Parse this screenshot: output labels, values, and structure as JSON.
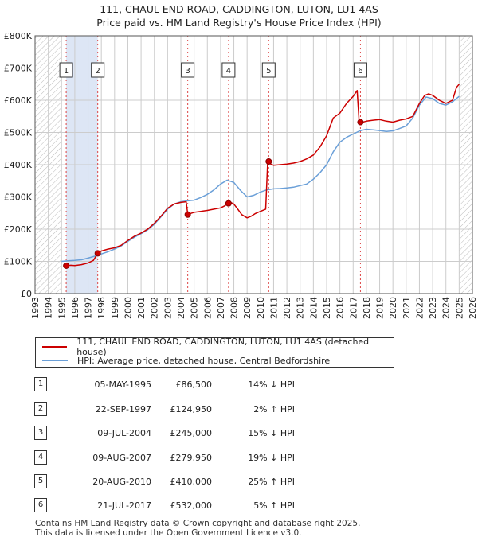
{
  "header": {
    "title_line1": "111, CHAUL END ROAD, CADDINGTON, LUTON, LU1 4AS",
    "title_line2": "Price paid vs. HM Land Registry's House Price Index (HPI)"
  },
  "chart_data": {
    "type": "line",
    "xlim": [
      1993,
      2026
    ],
    "ylim": [
      0,
      800000
    ],
    "y_ticks": [
      0,
      100000,
      200000,
      300000,
      400000,
      500000,
      600000,
      700000,
      800000
    ],
    "y_tick_labels": [
      "£0",
      "£100K",
      "£200K",
      "£300K",
      "£400K",
      "£500K",
      "£600K",
      "£700K",
      "£800K"
    ],
    "x_ticks": [
      1993,
      1994,
      1995,
      1996,
      1997,
      1998,
      1999,
      2000,
      2001,
      2002,
      2003,
      2004,
      2005,
      2006,
      2007,
      2008,
      2009,
      2010,
      2011,
      2012,
      2013,
      2014,
      2015,
      2016,
      2017,
      2018,
      2019,
      2020,
      2021,
      2022,
      2023,
      2024,
      2025,
      2026
    ],
    "x_tick_labels": [
      "1993",
      "1994",
      "1995",
      "1996",
      "1997",
      "1998",
      "1999",
      "2000",
      "2001",
      "2002",
      "2003",
      "2004",
      "2005",
      "2006",
      "2007",
      "2008",
      "2009",
      "2010",
      "2011",
      "2012",
      "2013",
      "2014",
      "2015",
      "2016",
      "2017",
      "2018",
      "2019",
      "2020",
      "2021",
      "2022",
      "2023",
      "2024",
      "2025",
      "2026"
    ],
    "grid": true,
    "hatched_ranges": [
      [
        1993,
        1995
      ],
      [
        2025,
        2026
      ]
    ],
    "highlight_band": [
      1995.35,
      1997.73
    ],
    "series": [
      {
        "name": "111, CHAUL END ROAD, CADDINGTON, LUTON, LU1 4AS (detached house)",
        "color": "#cc0000",
        "x": [
          1995.35,
          1995.7,
          1996.0,
          1996.5,
          1997.0,
          1997.4,
          1997.73,
          1998.0,
          1998.5,
          1999.0,
          1999.5,
          2000.0,
          2000.5,
          2001.0,
          2001.5,
          2002.0,
          2002.5,
          2003.0,
          2003.5,
          2004.0,
          2004.4,
          2004.52,
          2004.7,
          2005.0,
          2005.5,
          2006.0,
          2006.5,
          2007.0,
          2007.3,
          2007.6,
          2007.8,
          2008.0,
          2008.3,
          2008.6,
          2009.0,
          2009.3,
          2009.6,
          2010.0,
          2010.4,
          2010.55,
          2010.63,
          2011.0,
          2011.5,
          2012.0,
          2012.5,
          2013.0,
          2013.5,
          2014.0,
          2014.5,
          2015.0,
          2015.5,
          2016.0,
          2016.5,
          2017.0,
          2017.3,
          2017.45,
          2017.55,
          2018.0,
          2018.5,
          2019.0,
          2019.5,
          2020.0,
          2020.5,
          2021.0,
          2021.5,
          2022.0,
          2022.4,
          2022.7,
          2023.0,
          2023.5,
          2024.0,
          2024.5,
          2024.8,
          2025.0
        ],
        "y": [
          86500,
          88000,
          87000,
          90000,
          95000,
          103000,
          124950,
          132000,
          138000,
          142000,
          150000,
          165000,
          178000,
          188000,
          200000,
          218000,
          240000,
          265000,
          278000,
          283000,
          285000,
          245000,
          248000,
          252000,
          255000,
          258000,
          262000,
          266000,
          272000,
          279950,
          282000,
          278000,
          262000,
          245000,
          235000,
          240000,
          248000,
          255000,
          262000,
          410000,
          405000,
          398000,
          400000,
          402000,
          405000,
          410000,
          418000,
          430000,
          455000,
          490000,
          545000,
          560000,
          590000,
          612000,
          630000,
          532000,
          530000,
          535000,
          538000,
          540000,
          535000,
          532000,
          538000,
          542000,
          550000,
          590000,
          615000,
          620000,
          615000,
          600000,
          590000,
          600000,
          640000,
          650000
        ]
      },
      {
        "name": "HPI: Average price, detached house, Central Bedfordshire",
        "color": "#6a9fd8",
        "x": [
          1995.0,
          1995.5,
          1996.0,
          1996.5,
          1997.0,
          1997.5,
          1998.0,
          1998.5,
          1999.0,
          1999.5,
          2000.0,
          2000.5,
          2001.0,
          2001.5,
          2002.0,
          2002.5,
          2003.0,
          2003.5,
          2004.0,
          2004.5,
          2005.0,
          2005.5,
          2006.0,
          2006.5,
          2007.0,
          2007.5,
          2008.0,
          2008.5,
          2009.0,
          2009.5,
          2010.0,
          2010.5,
          2011.0,
          2011.5,
          2012.0,
          2012.5,
          2013.0,
          2013.5,
          2014.0,
          2014.5,
          2015.0,
          2015.5,
          2016.0,
          2016.5,
          2017.0,
          2017.5,
          2018.0,
          2018.5,
          2019.0,
          2019.5,
          2020.0,
          2020.5,
          2021.0,
          2021.5,
          2022.0,
          2022.5,
          2023.0,
          2023.5,
          2024.0,
          2024.5,
          2025.0
        ],
        "y": [
          100000,
          102000,
          103000,
          105000,
          110000,
          116000,
          123000,
          130000,
          138000,
          148000,
          162000,
          175000,
          186000,
          198000,
          215000,
          238000,
          262000,
          278000,
          285000,
          288000,
          290000,
          298000,
          308000,
          322000,
          340000,
          352000,
          345000,
          320000,
          300000,
          305000,
          315000,
          322000,
          325000,
          326000,
          328000,
          330000,
          335000,
          340000,
          355000,
          375000,
          400000,
          440000,
          470000,
          485000,
          495000,
          505000,
          510000,
          508000,
          506000,
          503000,
          505000,
          512000,
          520000,
          545000,
          585000,
          610000,
          605000,
          590000,
          585000,
          595000,
          612000
        ]
      }
    ],
    "sales": [
      {
        "label": "1",
        "x": 1995.35,
        "y": 86500
      },
      {
        "label": "2",
        "x": 1997.73,
        "y": 124950
      },
      {
        "label": "3",
        "x": 2004.52,
        "y": 245000
      },
      {
        "label": "4",
        "x": 2007.6,
        "y": 279950
      },
      {
        "label": "5",
        "x": 2010.63,
        "y": 410000
      },
      {
        "label": "6",
        "x": 2017.55,
        "y": 532000
      }
    ],
    "colors": {
      "property": "#cc0000",
      "hpi": "#6a9fd8",
      "band": "#dde6f5",
      "grid": "#cccccc",
      "hatch": "#bbbbbb",
      "vline": "#dd4444"
    }
  },
  "legend": {
    "property_label": "111, CHAUL END ROAD, CADDINGTON, LUTON, LU1 4AS (detached house)",
    "hpi_label": "HPI: Average price, detached house, Central Bedfordshire"
  },
  "sales_table": [
    {
      "num": "1",
      "date": "05-MAY-1995",
      "price": "£86,500",
      "hpi": "14% ↓ HPI"
    },
    {
      "num": "2",
      "date": "22-SEP-1997",
      "price": "£124,950",
      "hpi": "2% ↑ HPI"
    },
    {
      "num": "3",
      "date": "09-JUL-2004",
      "price": "£245,000",
      "hpi": "15% ↓ HPI"
    },
    {
      "num": "4",
      "date": "09-AUG-2007",
      "price": "£279,950",
      "hpi": "19% ↓ HPI"
    },
    {
      "num": "5",
      "date": "20-AUG-2010",
      "price": "£410,000",
      "hpi": "25% ↑ HPI"
    },
    {
      "num": "6",
      "date": "21-JUL-2017",
      "price": "£532,000",
      "hpi": "5% ↑ HPI"
    }
  ],
  "footer": {
    "line1": "Contains HM Land Registry data © Crown copyright and database right 2025.",
    "line2": "This data is licensed under the Open Government Licence v3.0."
  }
}
